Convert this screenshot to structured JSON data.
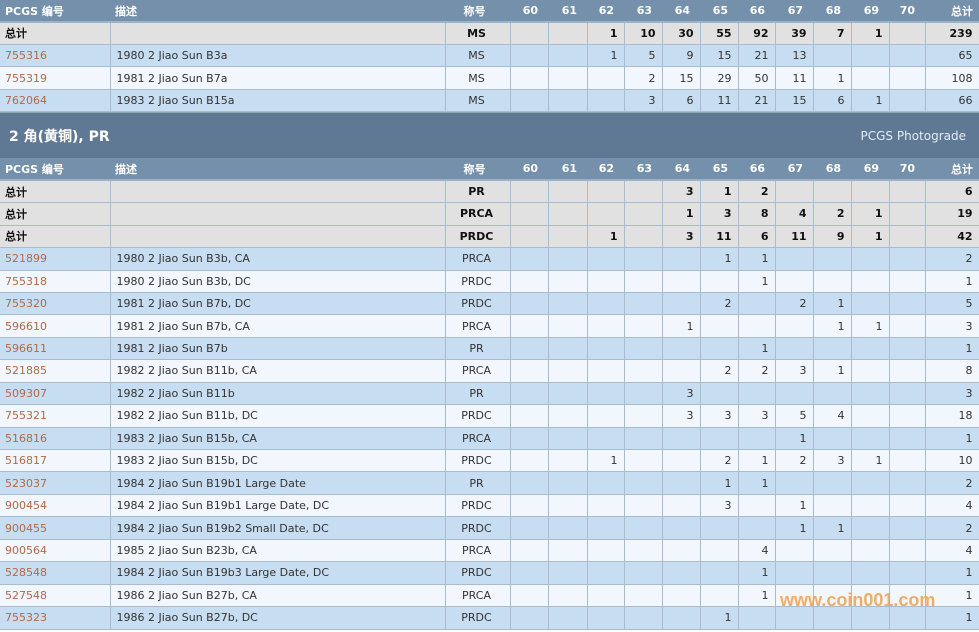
{
  "columns": {
    "id": "PCGS 编号",
    "desc": "描述",
    "designation": "称号",
    "grades": [
      "60",
      "61",
      "62",
      "63",
      "64",
      "65",
      "66",
      "67",
      "68",
      "69",
      "70"
    ],
    "total": "总计"
  },
  "ms_table": {
    "rows": [
      {
        "type": "total",
        "id": "总计",
        "desc": "",
        "des": "MS",
        "g": [
          "",
          "",
          "1",
          "10",
          "30",
          "55",
          "92",
          "39",
          "7",
          "1",
          ""
        ],
        "total": "239"
      },
      {
        "id": "755316",
        "desc": "1980 2 Jiao Sun B3a",
        "des": "MS",
        "g": [
          "",
          "",
          "1",
          "5",
          "9",
          "15",
          "21",
          "13",
          "",
          "",
          ""
        ],
        "total": "65"
      },
      {
        "id": "755319",
        "desc": "1981 2 Jiao Sun B7a",
        "des": "MS",
        "g": [
          "",
          "",
          "",
          "2",
          "15",
          "29",
          "50",
          "11",
          "1",
          "",
          ""
        ],
        "total": "108"
      },
      {
        "id": "762064",
        "desc": "1983 2 Jiao Sun B15a",
        "des": "MS",
        "g": [
          "",
          "",
          "",
          "3",
          "6",
          "11",
          "21",
          "15",
          "6",
          "1",
          ""
        ],
        "total": "66"
      }
    ]
  },
  "section": {
    "title": "2 角(黄铜), PR",
    "photograde_link": "PCGS Photograde"
  },
  "pr_table": {
    "rows": [
      {
        "type": "total",
        "id": "总计",
        "desc": "",
        "des": "PR",
        "g": [
          "",
          "",
          "",
          "",
          "3",
          "1",
          "2",
          "",
          "",
          "",
          ""
        ],
        "total": "6"
      },
      {
        "type": "total",
        "id": "总计",
        "desc": "",
        "des": "PRCA",
        "g": [
          "",
          "",
          "",
          "",
          "1",
          "3",
          "8",
          "4",
          "2",
          "1",
          ""
        ],
        "total": "19"
      },
      {
        "type": "total",
        "id": "总计",
        "desc": "",
        "des": "PRDC",
        "g": [
          "",
          "",
          "1",
          "",
          "3",
          "11",
          "6",
          "11",
          "9",
          "1",
          ""
        ],
        "total": "42"
      },
      {
        "id": "521899",
        "desc": "1980 2 Jiao Sun B3b, CA",
        "des": "PRCA",
        "g": [
          "",
          "",
          "",
          "",
          "",
          "1",
          "1",
          "",
          "",
          "",
          ""
        ],
        "total": "2"
      },
      {
        "id": "755318",
        "desc": "1980 2 Jiao Sun B3b, DC",
        "des": "PRDC",
        "g": [
          "",
          "",
          "",
          "",
          "",
          "",
          "1",
          "",
          "",
          "",
          ""
        ],
        "total": "1"
      },
      {
        "id": "755320",
        "desc": "1981 2 Jiao Sun B7b, DC",
        "des": "PRDC",
        "g": [
          "",
          "",
          "",
          "",
          "",
          "2",
          "",
          "2",
          "1",
          "",
          ""
        ],
        "total": "5"
      },
      {
        "id": "596610",
        "desc": "1981 2 Jiao Sun B7b, CA",
        "des": "PRCA",
        "g": [
          "",
          "",
          "",
          "",
          "1",
          "",
          "",
          "",
          "1",
          "1",
          ""
        ],
        "total": "3"
      },
      {
        "id": "596611",
        "desc": "1981 2 Jiao Sun B7b",
        "des": "PR",
        "g": [
          "",
          "",
          "",
          "",
          "",
          "",
          "1",
          "",
          "",
          "",
          ""
        ],
        "total": "1"
      },
      {
        "id": "521885",
        "desc": "1982 2 Jiao Sun B11b, CA",
        "des": "PRCA",
        "g": [
          "",
          "",
          "",
          "",
          "",
          "2",
          "2",
          "3",
          "1",
          "",
          ""
        ],
        "total": "8"
      },
      {
        "id": "509307",
        "desc": "1982 2 Jiao Sun B11b",
        "des": "PR",
        "g": [
          "",
          "",
          "",
          "",
          "3",
          "",
          "",
          "",
          "",
          "",
          ""
        ],
        "total": "3"
      },
      {
        "id": "755321",
        "desc": "1982 2 Jiao Sun B11b, DC",
        "des": "PRDC",
        "g": [
          "",
          "",
          "",
          "",
          "3",
          "3",
          "3",
          "5",
          "4",
          "",
          ""
        ],
        "total": "18"
      },
      {
        "id": "516816",
        "desc": "1983 2 Jiao Sun B15b, CA",
        "des": "PRCA",
        "g": [
          "",
          "",
          "",
          "",
          "",
          "",
          "",
          "1",
          "",
          "",
          ""
        ],
        "total": "1"
      },
      {
        "id": "516817",
        "desc": "1983 2 Jiao Sun B15b, DC",
        "des": "PRDC",
        "g": [
          "",
          "",
          "1",
          "",
          "",
          "2",
          "1",
          "2",
          "3",
          "1",
          ""
        ],
        "total": "10"
      },
      {
        "id": "523037",
        "desc": "1984 2 Jiao Sun B19b1 Large Date",
        "des": "PR",
        "g": [
          "",
          "",
          "",
          "",
          "",
          "1",
          "1",
          "",
          "",
          "",
          ""
        ],
        "total": "2"
      },
      {
        "id": "900454",
        "desc": "1984 2 Jiao Sun B19b1 Large Date, DC",
        "des": "PRDC",
        "g": [
          "",
          "",
          "",
          "",
          "",
          "3",
          "",
          "1",
          "",
          "",
          ""
        ],
        "total": "4"
      },
      {
        "id": "900455",
        "desc": "1984 2 Jiao Sun B19b2 Small Date, DC",
        "des": "PRDC",
        "g": [
          "",
          "",
          "",
          "",
          "",
          "",
          "",
          "1",
          "1",
          "",
          ""
        ],
        "total": "2"
      },
      {
        "id": "900564",
        "desc": "1985 2 Jiao Sun B23b, CA",
        "des": "PRCA",
        "g": [
          "",
          "",
          "",
          "",
          "",
          "",
          "4",
          "",
          "",
          "",
          ""
        ],
        "total": "4"
      },
      {
        "id": "528548",
        "desc": "1984 2 Jiao Sun B19b3 Large Date, DC",
        "des": "PRDC",
        "g": [
          "",
          "",
          "",
          "",
          "",
          "",
          "1",
          "",
          "",
          "",
          ""
        ],
        "total": "1"
      },
      {
        "id": "527548",
        "desc": "1986 2 Jiao Sun B27b, CA",
        "des": "PRCA",
        "g": [
          "",
          "",
          "",
          "",
          "",
          "",
          "1",
          "",
          "",
          "",
          ""
        ],
        "total": "1"
      },
      {
        "id": "755323",
        "desc": "1986 2 Jiao Sun B27b, DC",
        "des": "PRDC",
        "g": [
          "",
          "",
          "",
          "",
          "",
          "1",
          "",
          "",
          "",
          "",
          ""
        ],
        "total": "1"
      }
    ]
  },
  "watermark": "www.coin001.com"
}
